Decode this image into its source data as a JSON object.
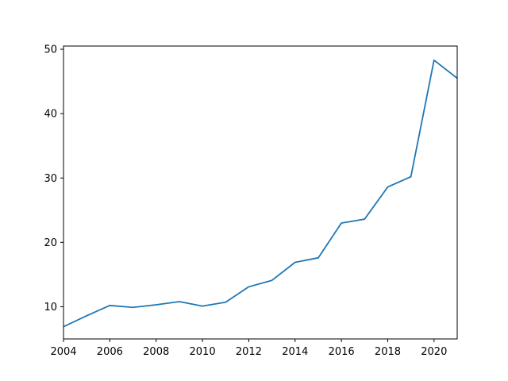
{
  "chart_data": {
    "type": "line",
    "title": "",
    "xlabel": "",
    "ylabel": "",
    "xlim": [
      2004,
      2021
    ],
    "ylim": [
      5,
      50.5
    ],
    "grid": false,
    "legend": "none",
    "x_ticks": [
      2004,
      2006,
      2008,
      2010,
      2012,
      2014,
      2016,
      2018,
      2020
    ],
    "y_ticks": [
      10,
      20,
      30,
      40,
      50
    ],
    "series": [
      {
        "color": "#1f77b4",
        "x": [
          2004,
          2005,
          2006,
          2007,
          2008,
          2009,
          2010,
          2011,
          2012,
          2013,
          2014,
          2015,
          2016,
          2017,
          2018,
          2019,
          2020,
          2021
        ],
        "y": [
          6.9,
          8.6,
          10.2,
          9.9,
          10.3,
          10.8,
          10.1,
          10.7,
          13.1,
          14.1,
          16.9,
          17.6,
          23.0,
          23.6,
          28.6,
          30.2,
          48.3,
          45.5
        ]
      }
    ]
  }
}
